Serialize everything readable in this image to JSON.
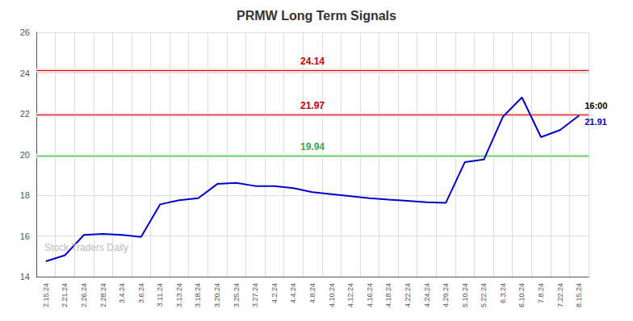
{
  "chart_data": {
    "type": "line",
    "title": "PRMW Long Term Signals",
    "categories": [
      "2.15.24",
      "2.21.24",
      "2.26.24",
      "2.28.24",
      "3.4.24",
      "3.6.24",
      "3.11.24",
      "3.13.24",
      "3.18.24",
      "3.20.24",
      "3.25.24",
      "3.27.24",
      "4.2.24",
      "4.4.24",
      "4.8.24",
      "4.10.24",
      "4.12.24",
      "4.16.24",
      "4.18.24",
      "4.22.24",
      "4.24.24",
      "4.29.24",
      "5.10.24",
      "5.22.24",
      "6.3.24",
      "6.10.24",
      "7.8.24",
      "7.22.24",
      "8.15.24"
    ],
    "values": [
      14.75,
      15.05,
      16.05,
      16.1,
      16.05,
      15.95,
      17.55,
      17.75,
      17.85,
      18.55,
      18.6,
      18.45,
      18.45,
      18.35,
      18.15,
      18.05,
      17.95,
      17.85,
      17.78,
      17.72,
      17.65,
      17.62,
      19.62,
      19.75,
      21.85,
      22.8,
      20.85,
      21.2,
      21.91
    ],
    "color": "#0000cc",
    "ylim": [
      14,
      26
    ],
    "yticks": [
      14,
      16,
      18,
      20,
      22,
      24,
      26
    ],
    "grid": true,
    "hlines": [
      {
        "y": 24.14,
        "label": "24.14",
        "color": "#cc0000",
        "fill_color": "#ffdddd"
      },
      {
        "y": 21.97,
        "label": "21.97",
        "color": "#cc0000",
        "fill_color": "#ffdddd"
      },
      {
        "y": 19.94,
        "label": "19.94",
        "color": "#44aa44",
        "fill_color": "#ddffdd"
      }
    ],
    "annotations": [
      {
        "text": "16:00",
        "x": "8.15.24",
        "y": 21.91,
        "color": "#000000"
      },
      {
        "text": "21.91",
        "x": "8.15.24",
        "y": 21.91,
        "color": "#0000cc"
      }
    ],
    "watermark": {
      "text": "Stock Traders Daily",
      "color": "#bbbbbb"
    }
  }
}
